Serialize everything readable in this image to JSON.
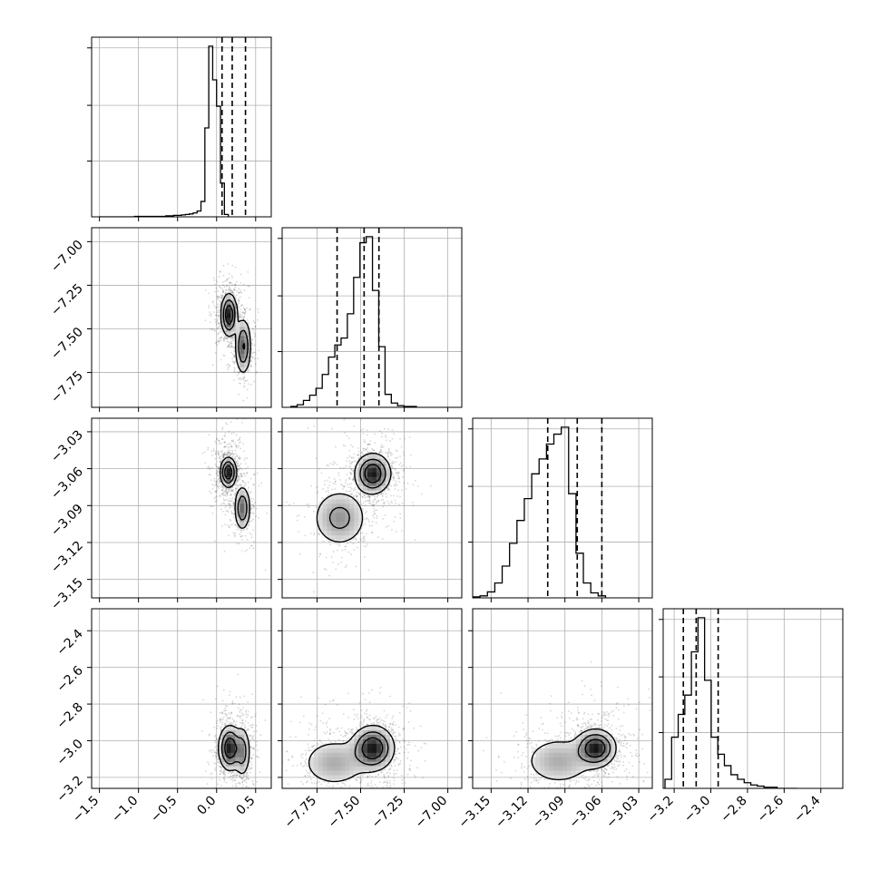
{
  "chart_data": {
    "type": "corner",
    "parameters": [
      {
        "id": "p0",
        "range": [
          -1.6,
          0.7
        ]
      },
      {
        "id": "p1",
        "range": [
          -7.95,
          -6.92
        ]
      },
      {
        "id": "p2",
        "range": [
          -3.165,
          -3.019
        ]
      },
      {
        "id": "p3",
        "range": [
          -3.26,
          -2.28
        ]
      }
    ],
    "tick_labels": {
      "p0": [
        {
          "v": -1.5,
          "t": "−1.5"
        },
        {
          "v": -1.0,
          "t": "−1.0"
        },
        {
          "v": -0.5,
          "t": "−0.5"
        },
        {
          "v": 0.0,
          "t": "0.0"
        },
        {
          "v": 0.5,
          "t": "0.5"
        }
      ],
      "p1": [
        {
          "v": -7.75,
          "t": "−7.75"
        },
        {
          "v": -7.5,
          "t": "−7.50"
        },
        {
          "v": -7.25,
          "t": "−7.25"
        },
        {
          "v": -7.0,
          "t": "−7.00"
        }
      ],
      "p2": [
        {
          "v": -3.15,
          "t": "−3.15"
        },
        {
          "v": -3.12,
          "t": "−3.12"
        },
        {
          "v": -3.09,
          "t": "−3.09"
        },
        {
          "v": -3.06,
          "t": "−3.06"
        },
        {
          "v": -3.03,
          "t": "−3.03"
        }
      ],
      "p3": [
        {
          "v": -3.2,
          "t": "−3.2"
        },
        {
          "v": -3.0,
          "t": "−3.0"
        },
        {
          "v": -2.8,
          "t": "−2.8"
        },
        {
          "v": -2.6,
          "t": "−2.6"
        },
        {
          "v": -2.4,
          "t": "−2.4"
        }
      ]
    },
    "histograms": [
      {
        "param": "p0",
        "quantiles": [
          0.07,
          0.2,
          0.37
        ],
        "edges_start": -1.5,
        "bin_width": 0.05,
        "counts": [
          0,
          0,
          0,
          0,
          0,
          0,
          0,
          0,
          0,
          1,
          1,
          1,
          1,
          1,
          1,
          1,
          1,
          2,
          2,
          3,
          3,
          4,
          5,
          6,
          8,
          12,
          32,
          185,
          355,
          285,
          230,
          70,
          5
        ]
      },
      {
        "param": "p1",
        "quantiles": [
          -7.635,
          -7.48,
          -7.395
        ],
        "edges_start": -7.9,
        "bin_width": 0.036,
        "counts": [
          1,
          3,
          8,
          14,
          22,
          38,
          58,
          72,
          80,
          108,
          150,
          190,
          197,
          135,
          70,
          15,
          5,
          2,
          1,
          1
        ]
      },
      {
        "param": "p2",
        "quantiles": [
          -3.104,
          -3.08,
          -3.06
        ],
        "edges_start": -3.165,
        "bin_width": 0.006,
        "counts": [
          1,
          2,
          6,
          15,
          32,
          55,
          78,
          100,
          125,
          140,
          155,
          165,
          172,
          105,
          45,
          15,
          5,
          2
        ]
      },
      {
        "param": "p3",
        "quantiles": [
          -3.15,
          -3.08,
          -2.96
        ],
        "edges_start": -3.25,
        "bin_width": 0.036,
        "counts": [
          8,
          45,
          65,
          82,
          120,
          150,
          95,
          45,
          30,
          20,
          12,
          8,
          5,
          3,
          2,
          1,
          1,
          0,
          0,
          0
        ]
      }
    ],
    "pairs": [
      {
        "x": "p0",
        "y": "p1",
        "peaks": [
          [
            0.16,
            -7.42,
            0.05,
            0.06,
            1.0
          ],
          [
            0.34,
            -7.6,
            0.05,
            0.08,
            0.7
          ]
        ],
        "spread": [
          0.11,
          0.12
        ]
      },
      {
        "x": "p0",
        "y": "p2",
        "peaks": [
          [
            0.15,
            -3.063,
            0.05,
            0.006,
            1.0
          ],
          [
            0.33,
            -3.092,
            0.05,
            0.009,
            0.65
          ]
        ],
        "spread": [
          0.11,
          0.018
        ]
      },
      {
        "x": "p0",
        "y": "p3",
        "peaks": [
          [
            0.17,
            -3.04,
            0.07,
            0.06,
            1.0
          ],
          [
            0.33,
            -3.06,
            0.05,
            0.07,
            0.5
          ]
        ],
        "spread": [
          0.12,
          0.13
        ]
      },
      {
        "x": "p1",
        "y": "p2",
        "peaks": [
          [
            -7.43,
            -3.064,
            0.05,
            0.008,
            1.0
          ],
          [
            -7.62,
            -3.1,
            0.08,
            0.012,
            0.45
          ]
        ],
        "spread": [
          0.12,
          0.022
        ]
      },
      {
        "x": "p1",
        "y": "p3",
        "peaks": [
          [
            -7.43,
            -3.04,
            0.06,
            0.06,
            1.0
          ],
          [
            -7.65,
            -3.12,
            0.1,
            0.07,
            0.35
          ]
        ],
        "spread": [
          0.12,
          0.14
        ]
      },
      {
        "x": "p2",
        "y": "p3",
        "peaks": [
          [
            -3.065,
            -3.04,
            0.008,
            0.05,
            1.0
          ],
          [
            -3.095,
            -3.11,
            0.015,
            0.07,
            0.35
          ]
        ],
        "spread": [
          0.022,
          0.14
        ]
      }
    ],
    "grid": true,
    "legend": "none",
    "colors": {
      "hist": "#000000",
      "points": "#222222",
      "contour": "#000000",
      "grid": "#b0b0b0"
    }
  }
}
